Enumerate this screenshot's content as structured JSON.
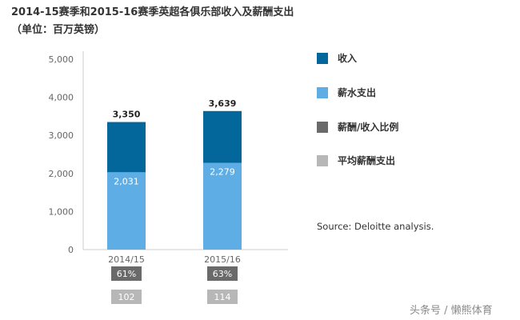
{
  "title": "2014-15赛季和2015-16赛季英超各俱乐部收入及薪酬支出",
  "subtitle": "（单位：百万英镑）",
  "colors": {
    "revenue": "#04679b",
    "wages": "#5fade5",
    "ratio": "#6a6a6a",
    "avg": "#b7b7b7",
    "axis": "#cccccc"
  },
  "chart_data": {
    "type": "bar",
    "stacked": true,
    "categories": [
      "2014/15",
      "2015/16"
    ],
    "series": [
      {
        "name": "薪水支出",
        "values": [
          2031,
          2279
        ]
      },
      {
        "name": "收入",
        "values": [
          1319,
          1360
        ]
      }
    ],
    "totals": [
      3350,
      3639
    ],
    "total_labels": [
      "3,350",
      "3,639"
    ],
    "wage_labels": [
      "2,031",
      "2,279"
    ],
    "ratio_labels": [
      "61%",
      "63%"
    ],
    "avg_labels": [
      "102",
      "114"
    ],
    "ylim": [
      0,
      5000
    ],
    "yticks": [
      0,
      1000,
      2000,
      3000,
      4000,
      5000
    ],
    "ytick_labels": [
      "0",
      "1,000",
      "2,000",
      "3,000",
      "4,000",
      "5,000"
    ],
    "grid": false,
    "legend_position": "right"
  },
  "legend": [
    {
      "label": "收入",
      "color_key": "revenue"
    },
    {
      "label": "薪水支出",
      "color_key": "wages"
    },
    {
      "label": "薪酬/收入比例",
      "color_key": "ratio"
    },
    {
      "label": "平均薪酬支出",
      "color_key": "avg"
    }
  ],
  "source": "Source: Deloitte analysis.",
  "watermark": "头条号 / 懒熊体育"
}
